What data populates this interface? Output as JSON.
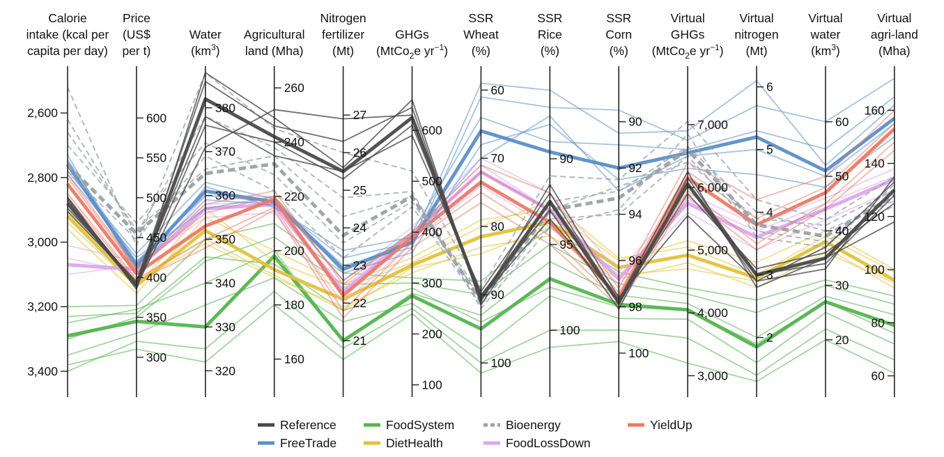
{
  "chart_data": {
    "type": "parallel-coordinates",
    "title": "",
    "axes": [
      {
        "id": "calorie",
        "title_lines": [
          "Calorie",
          "intake (kcal per",
          "capita per day)"
        ],
        "range": [
          3480,
          2455
        ],
        "inverted": true,
        "ticks": [
          {
            "v": 2600,
            "label": "2,600"
          },
          {
            "v": 2800,
            "label": "2,800"
          },
          {
            "v": 3000,
            "label": "3,000"
          },
          {
            "v": 3200,
            "label": "3,200"
          },
          {
            "v": 3400,
            "label": "3,400"
          }
        ],
        "tick_side": "left"
      },
      {
        "id": "price",
        "title_lines": [
          "Price",
          "(US$",
          "per t)"
        ],
        "range": [
          250,
          665
        ],
        "ticks": [
          {
            "v": 300,
            "label": "300"
          },
          {
            "v": 350,
            "label": "350"
          },
          {
            "v": 400,
            "label": "400"
          },
          {
            "v": 450,
            "label": "450"
          },
          {
            "v": 500,
            "label": "500"
          },
          {
            "v": 550,
            "label": "550"
          },
          {
            "v": 600,
            "label": "600"
          }
        ],
        "tick_side": "right"
      },
      {
        "id": "water",
        "title_lines": [
          "Water",
          "(km3)"
        ],
        "range": [
          314,
          389.5
        ],
        "ticks": [
          {
            "v": 320,
            "label": "320"
          },
          {
            "v": 330,
            "label": "330"
          },
          {
            "v": 340,
            "label": "340"
          },
          {
            "v": 350,
            "label": "350"
          },
          {
            "v": 360,
            "label": "360"
          },
          {
            "v": 370,
            "label": "370"
          },
          {
            "v": 380,
            "label": "380"
          }
        ],
        "tick_side": "right"
      },
      {
        "id": "agland",
        "title_lines": [
          "Agricultural",
          "land (Mha)"
        ],
        "range": [
          146,
          268
        ],
        "ticks": [
          {
            "v": 160,
            "label": "160"
          },
          {
            "v": 180,
            "label": "180"
          },
          {
            "v": 200,
            "label": "200"
          },
          {
            "v": 220,
            "label": "220"
          },
          {
            "v": 240,
            "label": "240"
          },
          {
            "v": 260,
            "label": "260"
          }
        ],
        "tick_side": "right"
      },
      {
        "id": "nfert",
        "title_lines": [
          "Nitrogen",
          "fertilizer",
          "(Mt)"
        ],
        "range": [
          19.5,
          28.3
        ],
        "ticks": [
          {
            "v": 21,
            "label": "21"
          },
          {
            "v": 22,
            "label": "22"
          },
          {
            "v": 23,
            "label": "23"
          },
          {
            "v": 24,
            "label": "24"
          },
          {
            "v": 25,
            "label": "25"
          },
          {
            "v": 26,
            "label": "26"
          },
          {
            "v": 27,
            "label": "27"
          }
        ],
        "tick_side": "right"
      },
      {
        "id": "ghg",
        "title_lines": [
          "GHGs",
          "(MtCo2e yr-1)"
        ],
        "range": [
          76,
          726
        ],
        "ticks": [
          {
            "v": 100,
            "label": "100"
          },
          {
            "v": 200,
            "label": "200"
          },
          {
            "v": 300,
            "label": "300"
          },
          {
            "v": 400,
            "label": "400"
          },
          {
            "v": 500,
            "label": "500"
          },
          {
            "v": 600,
            "label": "600"
          }
        ],
        "tick_side": "right"
      },
      {
        "id": "ssrwheat",
        "title_lines": [
          "SSR",
          "Wheat",
          "(%)"
        ],
        "range": [
          105,
          56.5
        ],
        "inverted": true,
        "ticks": [
          {
            "v": 60,
            "label": "60"
          },
          {
            "v": 70,
            "label": "70"
          },
          {
            "v": 80,
            "label": "80"
          },
          {
            "v": 90,
            "label": "90"
          },
          {
            "v": 100,
            "label": "100"
          }
        ],
        "tick_side": "right"
      },
      {
        "id": "ssrrice",
        "title_lines": [
          "SSR",
          "Rice",
          "(%)"
        ],
        "range": [
          103.9,
          84.6
        ],
        "inverted": true,
        "ticks": [
          {
            "v": 90,
            "label": "90"
          },
          {
            "v": 95,
            "label": "95"
          },
          {
            "v": 100,
            "label": "100"
          }
        ],
        "tick_side": "right"
      },
      {
        "id": "ssrcorn",
        "title_lines": [
          "SSR",
          "Corn",
          "(%)"
        ],
        "range": [
          101.9,
          87.6
        ],
        "inverted": true,
        "ticks": [
          {
            "v": 90,
            "label": "90"
          },
          {
            "v": 92,
            "label": "92"
          },
          {
            "v": 94,
            "label": "94"
          },
          {
            "v": 96,
            "label": "96"
          },
          {
            "v": 98,
            "label": "98"
          },
          {
            "v": 100,
            "label": "100"
          }
        ],
        "tick_side": "right"
      },
      {
        "id": "vghg",
        "title_lines": [
          "Virtual",
          "GHGs",
          "(MtCo2e yr-1)"
        ],
        "range": [
          2660,
          7930
        ],
        "ticks": [
          {
            "v": 3000,
            "label": "3,000"
          },
          {
            "v": 4000,
            "label": "4,000"
          },
          {
            "v": 5000,
            "label": "5,000"
          },
          {
            "v": 6000,
            "label": "6,000"
          },
          {
            "v": 7000,
            "label": "7,000"
          }
        ],
        "tick_side": "right"
      },
      {
        "id": "vnit",
        "title_lines": [
          "Virtual",
          "nitrogen",
          "(Mt)"
        ],
        "range": [
          1.05,
          6.33
        ],
        "ticks": [
          {
            "v": 2,
            "label": "2"
          },
          {
            "v": 3,
            "label": "3"
          },
          {
            "v": 4,
            "label": "4"
          },
          {
            "v": 5,
            "label": "5"
          },
          {
            "v": 6,
            "label": "6"
          }
        ],
        "tick_side": "right"
      },
      {
        "id": "vwater",
        "title_lines": [
          "Virtual",
          "water",
          "(km3)"
        ],
        "range": [
          9.5,
          70.2
        ],
        "ticks": [
          {
            "v": 20,
            "label": "20"
          },
          {
            "v": 30,
            "label": "30"
          },
          {
            "v": 40,
            "label": "40"
          },
          {
            "v": 50,
            "label": "50"
          },
          {
            "v": 60,
            "label": "60"
          }
        ],
        "tick_side": "right"
      },
      {
        "id": "vagri",
        "title_lines": [
          "Virtual",
          "agri-land",
          "(Mha)"
        ],
        "range": [
          52,
          176.6
        ],
        "ticks": [
          {
            "v": 60,
            "label": "60"
          },
          {
            "v": 80,
            "label": "80"
          },
          {
            "v": 100,
            "label": "100"
          },
          {
            "v": 120,
            "label": "120"
          },
          {
            "v": 140,
            "label": "140"
          },
          {
            "v": 160,
            "label": "160"
          }
        ],
        "tick_side": "left"
      }
    ],
    "series": [
      {
        "name": "Reference",
        "color": "#4a4a4a",
        "dashed": false,
        "mean": [
          2880,
          390,
          382,
          242,
          25.5,
          625,
          90.5,
          92.5,
          97.8,
          6050,
          3.0,
          35,
          130
        ],
        "members": [
          [
            2860,
            385,
            388,
            249,
            25.6,
            660,
            91.5,
            92.5,
            97.9,
            6080,
            2.9,
            33,
            135
          ],
          [
            2905,
            393,
            378,
            235,
            25.5,
            590,
            89.5,
            92.0,
            97.8,
            5900,
            3.1,
            36,
            125
          ],
          [
            2870,
            388,
            376,
            240,
            25.3,
            610,
            90.0,
            93.0,
            98.1,
            6150,
            3.0,
            34,
            128
          ],
          [
            2895,
            395,
            386,
            246,
            26.3,
            645,
            91.0,
            91.5,
            97.6,
            5550,
            2.9,
            37,
            133
          ],
          [
            2865,
            389,
            371,
            252,
            26.9,
            630,
            90.5,
            93.5,
            97.7,
            6250,
            2.8,
            35,
            118
          ]
        ]
      },
      {
        "name": "FreeTrade",
        "color": "#5b8fc9",
        "dashed": false,
        "mean": [
          2760,
          415,
          361,
          218,
          22.9,
          380,
          66.0,
          89.6,
          92.0,
          6550,
          5.2,
          51,
          157
        ],
        "members": [
          [
            2745,
            420,
            360,
            218,
            23.0,
            370,
            61.0,
            87.0,
            89.5,
            6750,
            5.7,
            60,
            172
          ],
          [
            2780,
            430,
            363,
            219,
            22.6,
            400,
            64.0,
            89.0,
            91.0,
            6600,
            5.3,
            55,
            165
          ],
          [
            2750,
            410,
            359,
            217,
            23.2,
            380,
            59.0,
            86.0,
            90.5,
            6900,
            6.1,
            52,
            162
          ],
          [
            2790,
            425,
            357,
            220,
            22.8,
            360,
            68.0,
            88.0,
            92.5,
            6300,
            4.6,
            48,
            150
          ],
          [
            2730,
            405,
            362,
            216,
            23.4,
            390,
            70.0,
            87.5,
            93.0,
            6500,
            5.0,
            50,
            155
          ]
        ]
      },
      {
        "name": "FoodSystem",
        "color": "#54b54f",
        "dashed": false,
        "mean": [
          3290,
          345,
          330,
          198,
          21.0,
          275,
          95.0,
          97.0,
          97.9,
          4050,
          1.85,
          27,
          79
        ],
        "members": [
          [
            3300,
            350,
            345,
            205,
            22.5,
            300,
            90.0,
            95.0,
            97.0,
            4300,
            2.4,
            30,
            87
          ],
          [
            3350,
            330,
            335,
            190,
            21.5,
            260,
            98.0,
            98.0,
            98.5,
            3900,
            1.6,
            25,
            72
          ],
          [
            3250,
            360,
            340,
            200,
            21.0,
            280,
            93.0,
            96.0,
            97.5,
            4150,
            2.0,
            28,
            83
          ],
          [
            3400,
            320,
            325,
            185,
            20.8,
            250,
            100.0,
            100.0,
            99.0,
            3600,
            1.4,
            22,
            66
          ],
          [
            3200,
            365,
            350,
            210,
            22.8,
            310,
            88.0,
            94.0,
            96.5,
            4400,
            2.6,
            31,
            90
          ],
          [
            3380,
            310,
            322,
            180,
            20.5,
            240,
            101.5,
            101.0,
            99.5,
            3200,
            1.3,
            20,
            61
          ],
          [
            3230,
            355,
            346,
            195,
            21.8,
            290,
            94.0,
            97.5,
            98.0,
            4050,
            1.9,
            27,
            76
          ]
        ]
      },
      {
        "name": "DietHealth",
        "color": "#e3c23a",
        "dashed": false,
        "mean": [
          2920,
          390,
          352,
          193,
          22.1,
          335,
          81.5,
          93.7,
          96.3,
          4920,
          2.95,
          38,
          96
        ],
        "members": [
          [
            2960,
            380,
            355,
            200,
            22.5,
            350,
            79.0,
            93.0,
            96.0,
            5150,
            3.2,
            40,
            100
          ],
          [
            2900,
            395,
            349,
            190,
            21.9,
            320,
            83.0,
            94.5,
            96.8,
            4800,
            2.8,
            36,
            95
          ],
          [
            2940,
            388,
            357,
            196,
            22.4,
            340,
            80.0,
            92.5,
            95.9,
            5050,
            3.0,
            39,
            99
          ],
          [
            2910,
            396,
            350,
            191,
            21.8,
            330,
            84.0,
            94.0,
            96.6,
            4700,
            2.9,
            37,
            93
          ]
        ]
      },
      {
        "name": "Bioenergy",
        "color": "#9aa2a8",
        "dashed": true,
        "mean": [
          2760,
          455,
          365,
          232,
          23.8,
          470,
          91.0,
          93.0,
          93.3,
          6600,
          3.8,
          39,
          128
        ],
        "members": [
          [
            2520,
            440,
            388,
            245,
            26.0,
            520,
            89.0,
            91.0,
            92.5,
            7050,
            4.2,
            42,
            135
          ],
          [
            2620,
            455,
            378,
            238,
            24.8,
            480,
            92.0,
            94.0,
            93.8,
            6850,
            3.6,
            37,
            132
          ],
          [
            2700,
            468,
            372,
            228,
            23.6,
            460,
            90.5,
            92.5,
            93.0,
            6650,
            4.0,
            40,
            126
          ],
          [
            2780,
            447,
            369,
            222,
            23.2,
            450,
            91.5,
            93.5,
            94.0,
            6500,
            3.7,
            38,
            124
          ],
          [
            2660,
            460,
            366,
            235,
            24.3,
            470,
            90.0,
            93.0,
            92.8,
            6400,
            3.9,
            41,
            130
          ]
        ]
      },
      {
        "name": "YieldUp",
        "color": "#ec7a66",
        "dashed": false,
        "mean": [
          2820,
          405,
          353,
          219,
          22.2,
          390,
          73.5,
          93.7,
          97.6,
          6150,
          3.8,
          47,
          153
        ],
        "members": [
          [
            2800,
            410,
            358,
            222,
            22.5,
            400,
            71.0,
            92.0,
            97.2,
            6400,
            4.2,
            50,
            160
          ],
          [
            2850,
            398,
            350,
            216,
            21.8,
            380,
            75.0,
            94.5,
            97.8,
            5950,
            3.5,
            45,
            148
          ],
          [
            2790,
            412,
            356,
            220,
            22.6,
            395,
            72.0,
            93.0,
            97.4,
            6250,
            3.9,
            48,
            155
          ],
          [
            2860,
            395,
            348,
            215,
            21.6,
            370,
            76.5,
            95.0,
            98.0,
            5850,
            3.4,
            44,
            145
          ]
        ]
      },
      {
        "name": "FoodLossDown",
        "color": "#dca6f0",
        "dashed": false,
        "mean": [
          3070,
          410,
          357,
          217,
          22.3,
          395,
          72.0,
          93.0,
          96.8,
          5750,
          3.6,
          44,
          134
        ],
        "members": [
          [
            3050,
            405,
            360,
            220,
            22.6,
            410,
            70.0,
            92.0,
            96.5,
            5900,
            3.8,
            46,
            138
          ],
          [
            3100,
            415,
            355,
            214,
            22.0,
            380,
            74.0,
            94.0,
            97.0,
            5600,
            3.4,
            42,
            130
          ],
          [
            3010,
            420,
            358,
            218,
            22.4,
            400,
            71.0,
            93.0,
            96.7,
            5800,
            3.7,
            45,
            135
          ]
        ]
      }
    ],
    "legend": {
      "position": "bottom",
      "entries": [
        "Reference",
        "FoodSystem",
        "Bioenergy",
        "YieldUp",
        "FreeTrade",
        "DietHealth",
        "FoodLossDown"
      ]
    }
  }
}
